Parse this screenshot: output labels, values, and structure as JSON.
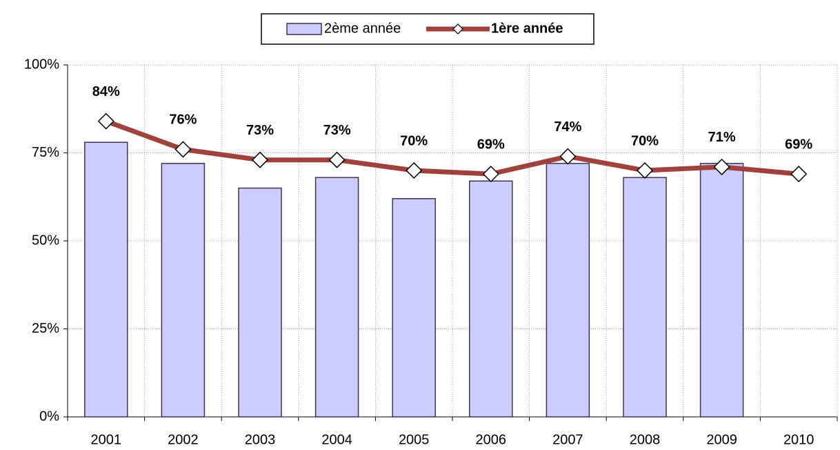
{
  "chart_data": {
    "type": "combo",
    "categories": [
      "2001",
      "2002",
      "2003",
      "2004",
      "2005",
      "2006",
      "2007",
      "2008",
      "2009",
      "2010"
    ],
    "series": [
      {
        "name": "2ème année",
        "type": "bar",
        "color": "#ccccff",
        "values": [
          78,
          72,
          65,
          68,
          62,
          67,
          72,
          68,
          72,
          null
        ]
      },
      {
        "name": "1ère année",
        "type": "line",
        "color": "#a0413c",
        "values": [
          84,
          76,
          73,
          73,
          70,
          69,
          74,
          70,
          71,
          69
        ],
        "value_labels": [
          "84%",
          "76%",
          "73%",
          "73%",
          "70%",
          "69%",
          "74%",
          "70%",
          "71%",
          "69%"
        ]
      }
    ],
    "ylim": [
      0,
      100
    ],
    "yticks": [
      {
        "value": 0,
        "label": "0%"
      },
      {
        "value": 25,
        "label": "25%"
      },
      {
        "value": 50,
        "label": "50%"
      },
      {
        "value": 75,
        "label": "75%"
      },
      {
        "value": 100,
        "label": "100%"
      }
    ],
    "grid": true,
    "legend": "top"
  }
}
